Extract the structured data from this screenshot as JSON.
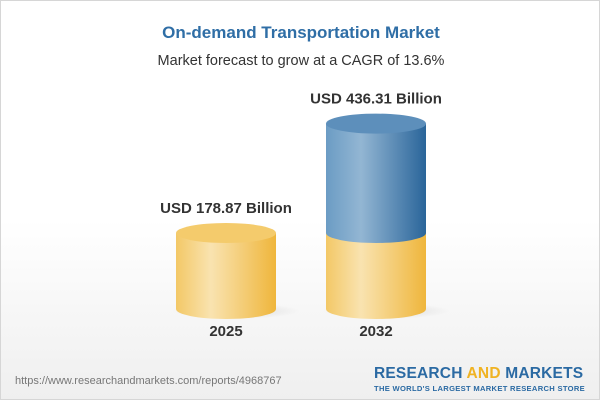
{
  "header": {
    "title": "On-demand Transportation Market",
    "subtitle": "Market forecast to grow at a CAGR of 13.6%"
  },
  "chart_data": {
    "type": "bar",
    "style": "3d-cylinder",
    "categories": [
      "2025",
      "2032"
    ],
    "values": [
      178.87,
      436.31
    ],
    "data_labels": [
      "USD 178.87 Billion",
      "USD 436.31 Billion"
    ],
    "unit": "USD Billion",
    "colors": {
      "base": "#f2c356",
      "growth": "#3f7cb0"
    },
    "grid": false
  },
  "footer": {
    "url": "https://www.researchandmarkets.com/reports/4968767",
    "logo_word1": "RESEARCH",
    "logo_word2": "AND",
    "logo_word3": "MARKETS",
    "logo_tagline": "THE WORLD'S LARGEST MARKET RESEARCH STORE"
  }
}
